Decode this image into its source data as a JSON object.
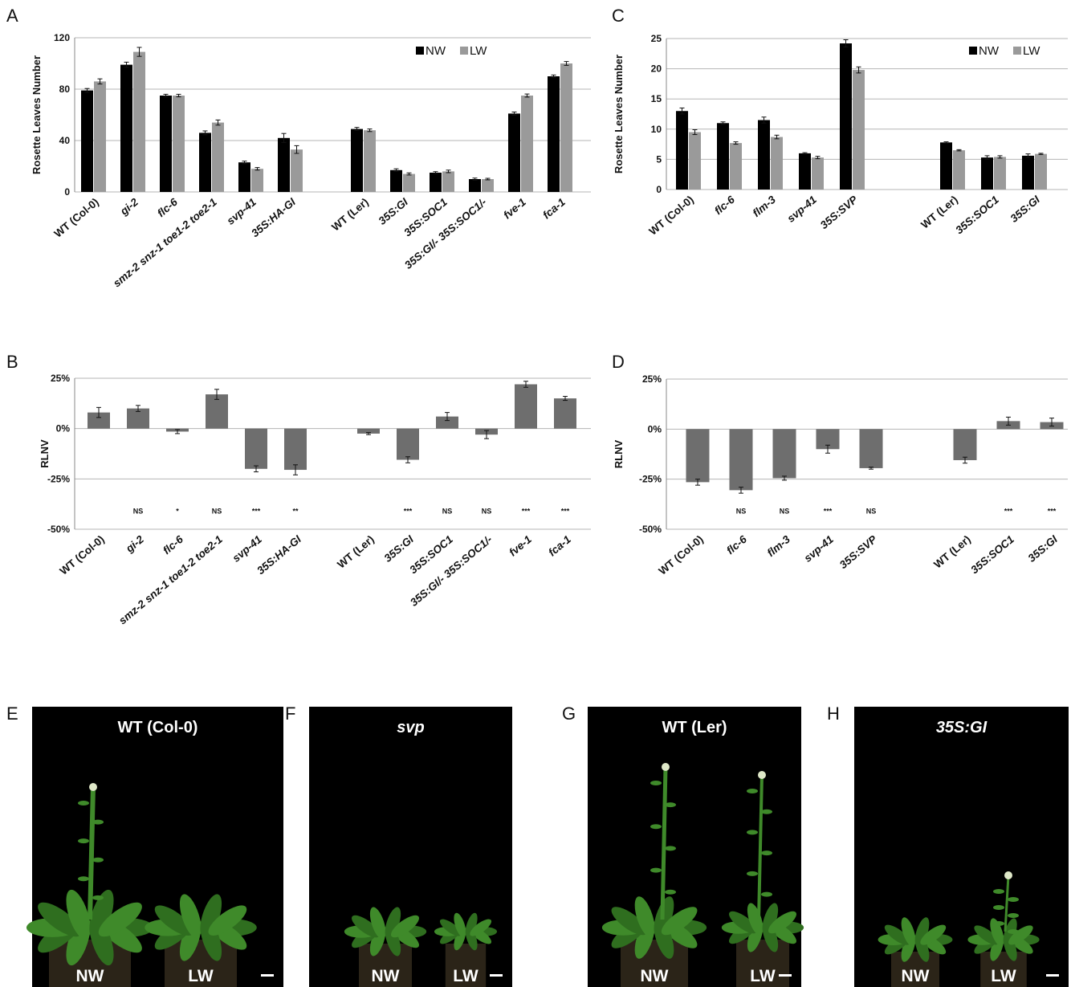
{
  "colors": {
    "nw": "#000000",
    "lw": "#9a9a9a",
    "rlnv": "#6e6e6e",
    "grid": "#b5b5b5",
    "photo_bg": "#000000"
  },
  "chart_data": [
    {
      "id": "A",
      "type": "bar",
      "panel_letter": "A",
      "ylabel": "Rosette Leaves Number",
      "ylim": [
        0,
        120
      ],
      "yticks": [
        0,
        40,
        80,
        120
      ],
      "ytick_labels": [
        "0",
        "40",
        "80",
        "120"
      ],
      "grid": true,
      "legend_position": "top-right",
      "categories": [
        "WT (Col-0)",
        "gi-2",
        "flc-6",
        "smz-2 snz-1 toe1-2 toe2-1",
        "svp-41",
        "35S:HA-GI",
        "WT (Ler)",
        "35S:GI",
        "35S:SOC1",
        "35S:GI/- 35S:SOC1/-",
        "fve-1",
        "fca-1"
      ],
      "italic_categories": [
        false,
        true,
        true,
        true,
        true,
        true,
        false,
        true,
        true,
        true,
        true,
        true
      ],
      "category_gap_after": 5,
      "series": [
        {
          "name": "NW",
          "values": [
            79,
            99,
            75,
            46,
            23,
            42,
            49,
            17,
            15,
            10,
            61,
            90
          ],
          "errors": [
            1.5,
            2,
            1,
            1.5,
            1,
            3.5,
            1.2,
            1,
            0.8,
            0.8,
            1.2,
            1
          ]
        },
        {
          "name": "LW",
          "values": [
            86,
            109,
            75,
            54,
            18,
            33,
            48,
            14,
            16,
            10,
            75,
            100
          ],
          "errors": [
            2,
            3.5,
            1,
            2,
            1,
            3,
            1,
            0.8,
            1,
            0.6,
            1.2,
            1.5
          ]
        }
      ]
    },
    {
      "id": "B",
      "type": "bar",
      "panel_letter": "B",
      "ylabel": "RLNV",
      "ylim": [
        -50,
        25
      ],
      "yticks": [
        25,
        0,
        -25,
        -50
      ],
      "ytick_labels": [
        "25%",
        "0%",
        "-25%",
        "-50%"
      ],
      "grid": true,
      "categories": [
        "WT (Col-0)",
        "gi-2",
        "flc-6",
        "smz-2 snz-1 toe1-2 toe2-1",
        "svp-41",
        "35S:HA-GI",
        "WT (Ler)",
        "35S:GI",
        "35S:SOC1",
        "35S:GI/- 35S:SOC1/-",
        "fve-1",
        "fca-1"
      ],
      "italic_categories": [
        false,
        true,
        true,
        true,
        true,
        true,
        false,
        true,
        true,
        true,
        true,
        true
      ],
      "category_gap_after": 5,
      "series": [
        {
          "values": [
            8,
            10,
            -1.5,
            17,
            -20,
            -20.5,
            -2.5,
            -15.5,
            6,
            -3,
            22,
            15
          ],
          "errors": [
            2.5,
            1.5,
            1,
            2.5,
            1.5,
            2.5,
            0.5,
            1.5,
            2,
            2,
            1.5,
            1
          ]
        }
      ],
      "significance": [
        "",
        "NS",
        "*",
        "NS",
        "***",
        "**",
        "",
        "***",
        "NS",
        "NS",
        "***",
        "***"
      ],
      "significance_y": -41
    },
    {
      "id": "C",
      "type": "bar",
      "panel_letter": "C",
      "ylabel": "Rosette Leaves Number",
      "ylim": [
        0,
        25
      ],
      "yticks": [
        0,
        5,
        10,
        15,
        20,
        25
      ],
      "ytick_labels": [
        "0",
        "5",
        "10",
        "15",
        "20",
        "25"
      ],
      "grid": true,
      "legend_position": "top-right",
      "categories": [
        "WT (Col-0)",
        "flc-6",
        "flm-3",
        "svp-41",
        "35S:SVP",
        "WT (Ler)",
        "35S:SOC1",
        "35S:GI"
      ],
      "italic_categories": [
        false,
        true,
        true,
        true,
        true,
        false,
        true,
        true
      ],
      "category_gap_after": 4,
      "series": [
        {
          "name": "NW",
          "values": [
            13,
            11,
            11.5,
            6,
            24.2,
            7.8,
            5.3,
            5.6
          ],
          "errors": [
            0.5,
            0.2,
            0.5,
            0.1,
            0.6,
            0.1,
            0.3,
            0.3
          ]
        },
        {
          "name": "LW",
          "values": [
            9.5,
            7.7,
            8.7,
            5.3,
            19.8,
            6.5,
            5.4,
            5.9
          ],
          "errors": [
            0.4,
            0.2,
            0.3,
            0.2,
            0.5,
            0.1,
            0.2,
            0.1
          ]
        }
      ]
    },
    {
      "id": "D",
      "type": "bar",
      "panel_letter": "D",
      "ylabel": "RLNV",
      "ylim": [
        -50,
        25
      ],
      "yticks": [
        25,
        0,
        -25,
        -50
      ],
      "ytick_labels": [
        "25%",
        "0%",
        "-25%",
        "-50%"
      ],
      "grid": true,
      "categories": [
        "WT (Col-0)",
        "flc-6",
        "flm-3",
        "svp-41",
        "35S:SVP",
        "WT (Ler)",
        "35S:SOC1",
        "35S:GI"
      ],
      "italic_categories": [
        false,
        true,
        true,
        true,
        true,
        false,
        true,
        true
      ],
      "category_gap_after": 4,
      "series": [
        {
          "values": [
            -26.5,
            -30.5,
            -24.5,
            -10,
            -19.5,
            -15.5,
            4,
            3.5
          ],
          "errors": [
            1.5,
            1.5,
            1,
            2,
            0.5,
            1.5,
            2,
            2
          ]
        }
      ],
      "significance": [
        "",
        "NS",
        "NS",
        "***",
        "NS",
        "",
        "***",
        "***"
      ],
      "significance_y": -41
    }
  ],
  "photos": [
    {
      "panel_letter": "E",
      "title": "WT (Col-0)",
      "title_italic": false,
      "labels": [
        "NW",
        "LW"
      ],
      "scale_bar": true
    },
    {
      "panel_letter": "F",
      "title": "svp",
      "title_italic": true,
      "labels": [
        "NW",
        "LW"
      ],
      "scale_bar": true
    },
    {
      "panel_letter": "G",
      "title": "WT (Ler)",
      "title_italic": false,
      "labels": [
        "NW",
        "LW"
      ],
      "scale_bar": true
    },
    {
      "panel_letter": "H",
      "title": "35S:GI",
      "title_italic": true,
      "labels": [
        "NW",
        "LW"
      ],
      "scale_bar": true
    }
  ]
}
